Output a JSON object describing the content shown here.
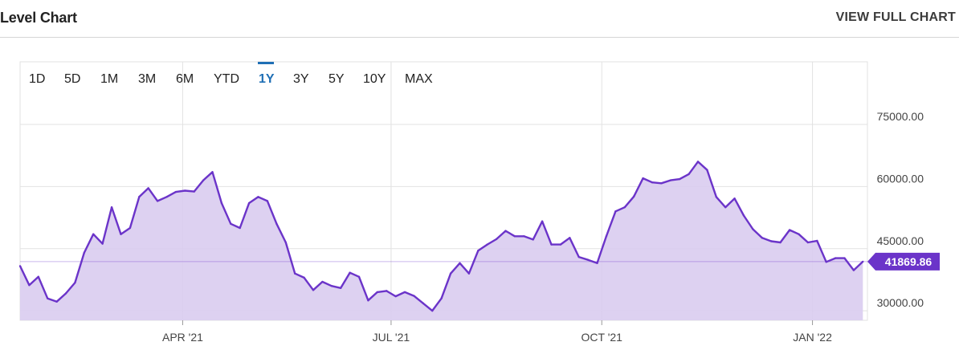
{
  "header": {
    "title": "Level Chart",
    "view_full": "VIEW FULL CHART"
  },
  "ranges": [
    "1D",
    "5D",
    "1M",
    "3M",
    "6M",
    "YTD",
    "1Y",
    "3Y",
    "5Y",
    "10Y",
    "MAX"
  ],
  "active_range": "1Y",
  "colors": {
    "line": "#6b34c9",
    "fill": "#d9ccf0",
    "badge": "#6b34c9",
    "active": "#1f6fb5"
  },
  "chart_data": {
    "type": "area",
    "x_tick_labels": [
      "APR '21",
      "JUL '21",
      "OCT '21",
      "JAN '22"
    ],
    "x_ticks": [
      "2021-04-01",
      "2021-07-01",
      "2021-10-01",
      "2022-01-01"
    ],
    "y_tick_labels": [
      "75000.00",
      "60000.00",
      "45000.00",
      "30000.00"
    ],
    "y_ticks": [
      75000,
      60000,
      45000,
      30000
    ],
    "ylim": [
      27700,
      75000
    ],
    "xlim": [
      "2021-01-20",
      "2022-01-25"
    ],
    "last_value_label": "41869.86",
    "last_value": 41869.86,
    "grid": true,
    "series": [
      {
        "x": [
          "2021-01-20",
          "2021-01-24",
          "2021-01-28",
          "2021-02-01",
          "2021-02-05",
          "2021-02-09",
          "2021-02-13",
          "2021-02-17",
          "2021-02-21",
          "2021-02-25",
          "2021-03-01",
          "2021-03-05",
          "2021-03-09",
          "2021-03-13",
          "2021-03-17",
          "2021-03-21",
          "2021-03-25",
          "2021-03-29",
          "2021-04-02",
          "2021-04-06",
          "2021-04-10",
          "2021-04-14",
          "2021-04-18",
          "2021-04-22",
          "2021-04-26",
          "2021-04-30",
          "2021-05-04",
          "2021-05-08",
          "2021-05-12",
          "2021-05-16",
          "2021-05-20",
          "2021-05-24",
          "2021-05-28",
          "2021-06-01",
          "2021-06-05",
          "2021-06-09",
          "2021-06-13",
          "2021-06-17",
          "2021-06-21",
          "2021-06-25",
          "2021-06-29",
          "2021-07-03",
          "2021-07-07",
          "2021-07-11",
          "2021-07-15",
          "2021-07-19",
          "2021-07-23",
          "2021-07-27",
          "2021-07-31",
          "2021-08-04",
          "2021-08-08",
          "2021-08-12",
          "2021-08-16",
          "2021-08-20",
          "2021-08-24",
          "2021-08-28",
          "2021-09-01",
          "2021-09-05",
          "2021-09-09",
          "2021-09-13",
          "2021-09-17",
          "2021-09-21",
          "2021-09-25",
          "2021-09-29",
          "2021-10-03",
          "2021-10-07",
          "2021-10-11",
          "2021-10-15",
          "2021-10-19",
          "2021-10-23",
          "2021-10-27",
          "2021-10-31",
          "2021-11-04",
          "2021-11-08",
          "2021-11-12",
          "2021-11-16",
          "2021-11-20",
          "2021-11-24",
          "2021-11-28",
          "2021-12-02",
          "2021-12-06",
          "2021-12-10",
          "2021-12-14",
          "2021-12-18",
          "2021-12-22",
          "2021-12-26",
          "2021-12-30",
          "2022-01-03",
          "2022-01-07",
          "2022-01-11",
          "2022-01-15",
          "2022-01-19",
          "2022-01-23"
        ],
        "y": [
          40800,
          36200,
          38200,
          33000,
          32200,
          34200,
          36800,
          44000,
          48500,
          46200,
          55000,
          48500,
          50000,
          57500,
          59600,
          56500,
          57500,
          58700,
          59000,
          58800,
          61500,
          63500,
          56000,
          51000,
          50000,
          56000,
          57500,
          56500,
          51000,
          46500,
          39000,
          38000,
          35000,
          37000,
          36000,
          35500,
          39200,
          38200,
          32500,
          34500,
          34800,
          33500,
          34500,
          33600,
          31800,
          30000,
          33000,
          39000,
          41500,
          39000,
          44500,
          46000,
          47300,
          49300,
          48000,
          48000,
          47200,
          51600,
          46000,
          46000,
          47600,
          43000,
          42300,
          41500,
          48000,
          54000,
          55000,
          57600,
          62000,
          61000,
          60800,
          61500,
          61800,
          63000,
          66000,
          64000,
          57500,
          55000,
          57100,
          53000,
          49700,
          47600,
          46800,
          46500,
          49500,
          48500,
          46500,
          46900,
          41800,
          42700,
          42700,
          39800,
          41870
        ]
      }
    ]
  }
}
